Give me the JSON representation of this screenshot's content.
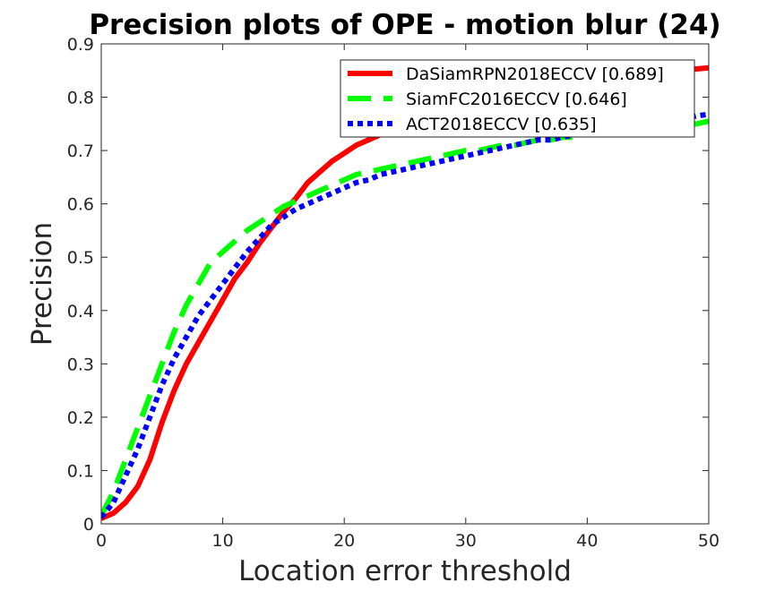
{
  "chart_data": {
    "type": "line",
    "title": "Precision plots of OPE - motion blur (24)",
    "xlabel": "Location error threshold",
    "ylabel": "Precision",
    "xlim": [
      0,
      50
    ],
    "ylim": [
      0,
      0.9
    ],
    "xticks": [
      "0",
      "10",
      "20",
      "30",
      "40",
      "50"
    ],
    "yticks": [
      "0",
      "0.1",
      "0.2",
      "0.3",
      "0.4",
      "0.5",
      "0.6",
      "0.7",
      "0.8",
      "0.9"
    ],
    "grid": false,
    "legend_position": "top-right",
    "x": [
      0,
      1,
      2,
      3,
      4,
      5,
      6,
      7,
      8,
      9,
      10,
      11,
      12,
      13,
      14,
      15,
      16,
      17,
      18,
      19,
      20,
      21,
      22,
      23,
      24,
      25,
      26,
      27,
      28,
      29,
      30,
      31,
      32,
      33,
      34,
      35,
      36,
      37,
      38,
      39,
      40,
      41,
      42,
      43,
      44,
      45,
      46,
      47,
      48,
      49,
      50
    ],
    "series": [
      {
        "name": "DaSiamRPN2018ECCV [0.689]",
        "color": "#ff0000",
        "style": "solid",
        "values": [
          0.01,
          0.02,
          0.04,
          0.07,
          0.12,
          0.19,
          0.25,
          0.3,
          0.34,
          0.38,
          0.42,
          0.46,
          0.49,
          0.525,
          0.555,
          0.585,
          0.61,
          0.64,
          0.66,
          0.68,
          0.695,
          0.71,
          0.72,
          0.73,
          0.74,
          0.745,
          0.75,
          0.755,
          0.76,
          0.765,
          0.77,
          0.775,
          0.78,
          0.785,
          0.79,
          0.795,
          0.8,
          0.805,
          0.81,
          0.815,
          0.82,
          0.825,
          0.83,
          0.835,
          0.84,
          0.843,
          0.846,
          0.849,
          0.851,
          0.853,
          0.855
        ]
      },
      {
        "name": "SiamFC2016ECCV [0.646]",
        "color": "#00ff00",
        "style": "dashed",
        "values": [
          0.015,
          0.06,
          0.12,
          0.18,
          0.24,
          0.3,
          0.36,
          0.41,
          0.45,
          0.49,
          0.51,
          0.53,
          0.55,
          0.565,
          0.58,
          0.595,
          0.605,
          0.615,
          0.625,
          0.635,
          0.645,
          0.655,
          0.66,
          0.665,
          0.67,
          0.675,
          0.68,
          0.685,
          0.69,
          0.695,
          0.7,
          0.7,
          0.705,
          0.71,
          0.71,
          0.715,
          0.72,
          0.72,
          0.725,
          0.725,
          0.73,
          0.73,
          0.735,
          0.735,
          0.74,
          0.74,
          0.745,
          0.745,
          0.75,
          0.75,
          0.755
        ]
      },
      {
        "name": "ACT2018ECCV [0.635]",
        "color": "#0000ff",
        "style": "dotted",
        "values": [
          0.012,
          0.04,
          0.09,
          0.14,
          0.2,
          0.26,
          0.31,
          0.35,
          0.39,
          0.42,
          0.45,
          0.48,
          0.51,
          0.535,
          0.56,
          0.575,
          0.59,
          0.6,
          0.61,
          0.62,
          0.63,
          0.64,
          0.645,
          0.655,
          0.66,
          0.665,
          0.67,
          0.675,
          0.68,
          0.685,
          0.69,
          0.695,
          0.7,
          0.705,
          0.71,
          0.715,
          0.72,
          0.72,
          0.725,
          0.73,
          0.735,
          0.735,
          0.74,
          0.745,
          0.745,
          0.75,
          0.755,
          0.755,
          0.76,
          0.765,
          0.768
        ]
      }
    ]
  }
}
